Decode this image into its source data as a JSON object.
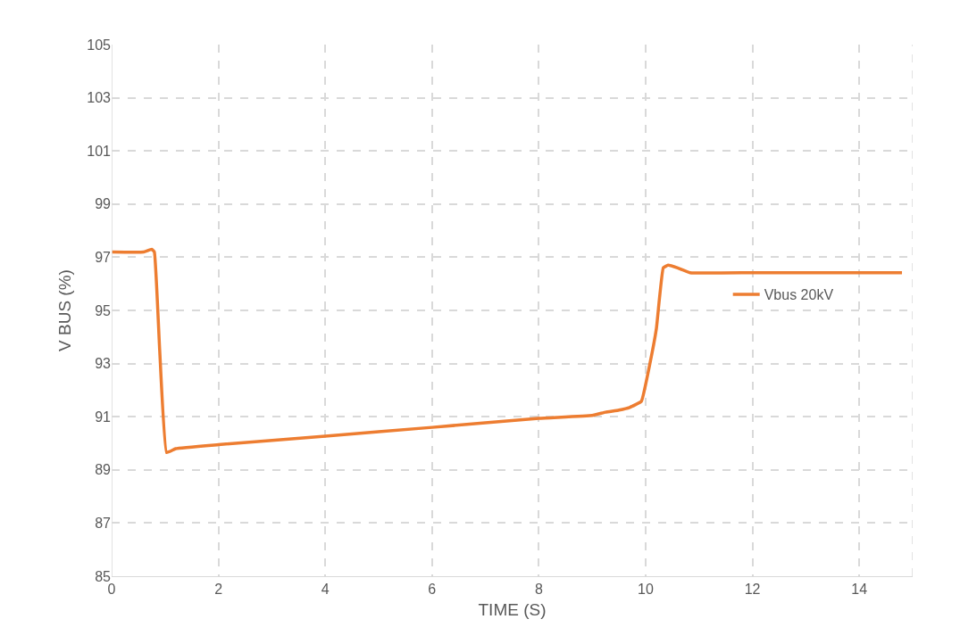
{
  "chart_data": {
    "type": "line",
    "xlabel": "TIME (S)",
    "ylabel": "V BUS (%)",
    "xlim": [
      0,
      15
    ],
    "xticks": [
      0,
      2,
      4,
      6,
      8,
      10,
      12,
      14
    ],
    "ylim": [
      85,
      105
    ],
    "yticks": [
      85,
      87,
      89,
      91,
      93,
      95,
      97,
      99,
      101,
      103,
      105
    ],
    "grid": true,
    "legend": "right",
    "marker": "none",
    "line_style": "solid",
    "series": [
      {
        "name": "Vbus 20kV",
        "color": "#ed7d31",
        "x": [
          0,
          0.6,
          0.75,
          0.8,
          0.9,
          1.03,
          1.2,
          2,
          4,
          6,
          8,
          9,
          9.25,
          9.5,
          9.7,
          9.92,
          10.08,
          10.2,
          10.33,
          10.42,
          10.6,
          10.83,
          12,
          14,
          14.8
        ],
        "values": [
          97.2,
          97.2,
          97.3,
          97.2,
          93.5,
          89.65,
          89.8,
          89.95,
          90.27,
          90.6,
          90.94,
          91.05,
          91.17,
          91.25,
          91.35,
          91.58,
          93.0,
          94.3,
          96.6,
          96.7,
          96.6,
          96.42,
          96.42,
          96.42,
          96.42
        ]
      }
    ]
  }
}
